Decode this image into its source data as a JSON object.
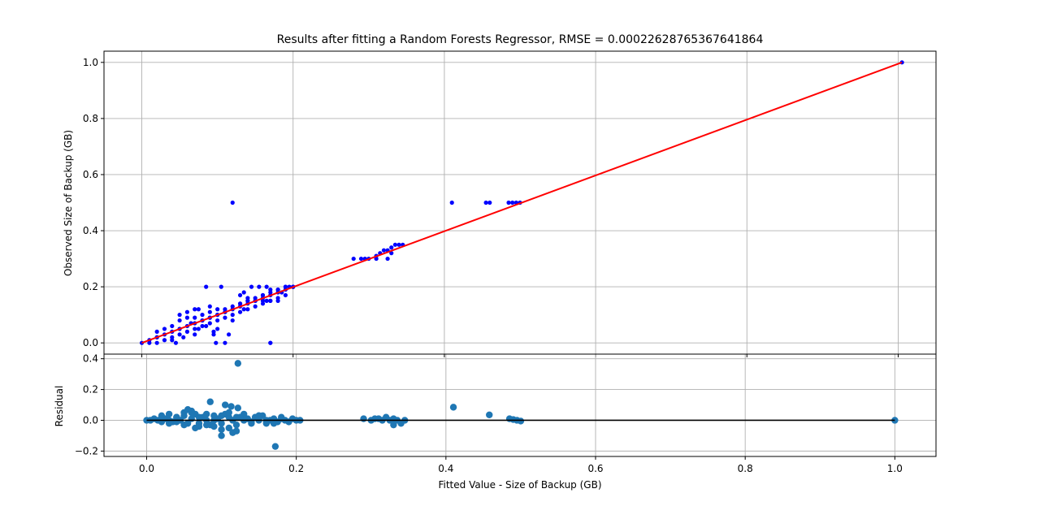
{
  "colors": {
    "scatter_points": "#0000ff",
    "fit_line": "#ff0000",
    "residual_points": "#1f77b4",
    "zero_line": "#000000",
    "grid": "#b0b0b0"
  },
  "chart_data": [
    {
      "type": "scatter",
      "title": "Results after fitting a Random Forests Regressor, RMSE = 0.00022628765367641864",
      "xlabel": "",
      "ylabel": "Observed Size of Backup (GB)",
      "xlim": [
        -0.05,
        1.05
      ],
      "ylim": [
        -0.04,
        1.04
      ],
      "xticks": [
        0.0,
        0.2,
        0.4,
        0.6,
        0.8,
        1.0
      ],
      "yticks": [
        0.0,
        0.2,
        0.4,
        0.6,
        0.8,
        1.0
      ],
      "xtick_labels": [
        "",
        "",
        "",
        "",
        "",
        ""
      ],
      "ytick_labels": [
        "0.0",
        "0.2",
        "0.4",
        "0.6",
        "0.8",
        "1.0"
      ],
      "grid": true,
      "series": [
        {
          "kind": "points",
          "x": [
            0.0,
            0.01,
            0.02,
            0.03,
            0.04,
            0.05,
            0.06,
            0.07,
            0.08,
            0.09,
            0.1,
            0.11,
            0.12,
            0.13,
            0.14,
            0.15,
            0.16,
            0.17,
            0.18,
            0.19,
            0.2,
            0.02,
            0.03,
            0.04,
            0.05,
            0.06,
            0.07,
            0.08,
            0.09,
            0.1,
            0.11,
            0.12,
            0.13,
            0.14,
            0.15,
            0.16,
            0.17,
            0.18,
            0.01,
            0.02,
            0.03,
            0.04,
            0.05,
            0.06,
            0.07,
            0.08,
            0.09,
            0.1,
            0.11,
            0.12,
            0.13,
            0.14,
            0.15,
            0.16,
            0.17,
            0.18,
            0.19,
            0.02,
            0.05,
            0.06,
            0.07,
            0.08,
            0.09,
            0.1,
            0.11,
            0.13,
            0.14,
            0.15,
            0.16,
            0.17,
            0.18,
            0.19,
            0.2,
            0.05,
            0.065,
            0.075,
            0.085,
            0.095,
            0.105,
            0.115,
            0.145,
            0.155,
            0.165,
            0.19,
            0.195,
            0.2,
            0.075,
            0.085,
            0.13,
            0.135,
            0.16,
            0.165,
            0.04,
            0.045,
            0.055,
            0.07,
            0.09,
            0.095,
            0.1,
            0.12,
            0.135,
            0.17,
            0.11,
            0.14,
            0.17,
            0.18,
            0.185,
            0.29,
            0.3,
            0.31,
            0.315,
            0.32,
            0.325,
            0.33,
            0.335,
            0.34,
            0.345,
            0.31,
            0.325,
            0.33,
            0.28,
            0.295,
            0.41,
            0.455,
            0.46,
            0.485,
            0.49,
            0.495,
            0.5,
            1.005
          ],
          "y": [
            0.0,
            0.01,
            0.02,
            0.03,
            0.04,
            0.05,
            0.06,
            0.07,
            0.08,
            0.09,
            0.1,
            0.11,
            0.12,
            0.13,
            0.14,
            0.15,
            0.16,
            0.17,
            0.18,
            0.19,
            0.2,
            0.04,
            0.05,
            0.06,
            0.08,
            0.09,
            0.09,
            0.1,
            0.11,
            0.12,
            0.12,
            0.13,
            0.14,
            0.15,
            0.16,
            0.17,
            0.18,
            0.19,
            0.0,
            0.0,
            0.01,
            0.02,
            0.03,
            0.04,
            0.05,
            0.06,
            0.07,
            0.08,
            0.09,
            0.1,
            0.11,
            0.12,
            0.13,
            0.14,
            0.15,
            0.16,
            0.17,
            0.02,
            0.1,
            0.11,
            0.12,
            0.08,
            0.13,
            0.1,
            0.11,
            0.14,
            0.16,
            0.15,
            0.17,
            0.15,
            0.15,
            0.2,
            0.2,
            0.05,
            0.07,
            0.05,
            0.2,
            0.04,
            0.2,
            0.03,
            0.2,
            0.2,
            0.2,
            0.2,
            0.2,
            0.2,
            0.12,
            0.06,
            0.17,
            0.18,
            0.15,
            0.15,
            0.01,
            0.0,
            0.02,
            0.03,
            0.09,
            0.03,
            0.05,
            0.08,
            0.12,
            0.0,
            0.0,
            0.15,
            0.19,
            0.19,
            0.18,
            0.3,
            0.3,
            0.31,
            0.32,
            0.33,
            0.33,
            0.34,
            0.35,
            0.35,
            0.35,
            0.3,
            0.3,
            0.32,
            0.3,
            0.3,
            0.5,
            0.5,
            0.5,
            0.5,
            0.5,
            0.5,
            0.5,
            1.0
          ],
          "extra_points": [
            [
              0.12,
              0.5
            ],
            [
              0.17,
              0.0
            ],
            [
              0.098,
              0.0
            ]
          ]
        },
        {
          "kind": "line",
          "x": [
            0.0,
            1.005
          ],
          "y": [
            0.0,
            1.0
          ]
        }
      ]
    },
    {
      "type": "scatter",
      "title": "",
      "xlabel": "Fitted Value - Size of Backup (GB)",
      "ylabel": "Residual",
      "xlim": [
        -0.057,
        1.055
      ],
      "ylim": [
        -0.235,
        0.43
      ],
      "xticks": [
        0.0,
        0.2,
        0.4,
        0.6,
        0.8,
        1.0
      ],
      "yticks": [
        -0.2,
        0.0,
        0.2,
        0.4
      ],
      "xtick_labels": [
        "0.0",
        "0.2",
        "0.4",
        "0.6",
        "0.8",
        "1.0"
      ],
      "ytick_labels": [
        "−0.2",
        "0.0",
        "0.2",
        "0.4"
      ],
      "grid": true,
      "series": [
        {
          "kind": "points",
          "x": [
            0.0,
            0.005,
            0.01,
            0.015,
            0.02,
            0.025,
            0.03,
            0.035,
            0.04,
            0.045,
            0.05,
            0.055,
            0.06,
            0.065,
            0.07,
            0.075,
            0.08,
            0.085,
            0.09,
            0.095,
            0.1,
            0.105,
            0.11,
            0.115,
            0.12,
            0.125,
            0.13,
            0.135,
            0.14,
            0.145,
            0.15,
            0.155,
            0.16,
            0.165,
            0.17,
            0.175,
            0.18,
            0.185,
            0.19,
            0.195,
            0.2,
            0.205,
            0.02,
            0.03,
            0.04,
            0.05,
            0.06,
            0.07,
            0.08,
            0.09,
            0.1,
            0.11,
            0.12,
            0.13,
            0.14,
            0.15,
            0.16,
            0.17,
            0.18,
            0.03,
            0.04,
            0.05,
            0.06,
            0.07,
            0.08,
            0.09,
            0.1,
            0.11,
            0.12,
            0.13,
            0.15,
            0.16,
            0.085,
            0.105,
            0.113,
            0.122,
            0.1,
            0.115,
            0.055,
            0.065,
            0.125,
            0.172,
            0.29,
            0.3,
            0.31,
            0.32,
            0.325,
            0.33,
            0.335,
            0.34,
            0.345,
            0.305,
            0.315,
            0.33,
            0.41,
            0.458,
            0.485,
            0.49,
            0.495,
            0.5,
            1.0
          ],
          "y": [
            0.0,
            0.0,
            0.01,
            0.0,
            -0.01,
            0.01,
            0.0,
            -0.01,
            0.02,
            0.0,
            0.03,
            -0.02,
            0.01,
            0.04,
            -0.02,
            0.02,
            0.0,
            -0.03,
            0.03,
            0.01,
            -0.02,
            0.04,
            0.02,
            0.0,
            -0.03,
            0.02,
            0.0,
            0.01,
            -0.01,
            0.02,
            0.0,
            0.03,
            -0.02,
            0.0,
            0.01,
            -0.01,
            0.02,
            0.0,
            -0.01,
            0.01,
            0.0,
            0.0,
            0.03,
            0.04,
            -0.01,
            0.05,
            0.06,
            0.02,
            -0.03,
            -0.04,
            0.03,
            -0.05,
            0.02,
            0.04,
            -0.02,
            0.03,
            0.0,
            -0.02,
            0.01,
            -0.02,
            0.02,
            -0.03,
            0.05,
            -0.04,
            0.04,
            0.0,
            -0.06,
            0.05,
            -0.07,
            0.01,
            0.03,
            -0.01,
            0.12,
            0.1,
            0.09,
            0.08,
            -0.1,
            -0.08,
            0.07,
            -0.05,
            0.02,
            -0.17,
            0.01,
            0.0,
            0.01,
            0.02,
            0.0,
            0.01,
            0.0,
            -0.02,
            0.0,
            0.01,
            0.0,
            -0.03,
            0.085,
            0.035,
            0.01,
            0.005,
            0.0,
            -0.005,
            0.0
          ],
          "extra_points": [
            [
              0.122,
              0.37
            ]
          ]
        },
        {
          "kind": "line",
          "x": [
            0.0,
            1.0
          ],
          "y": [
            0.0,
            0.0
          ]
        }
      ]
    }
  ]
}
